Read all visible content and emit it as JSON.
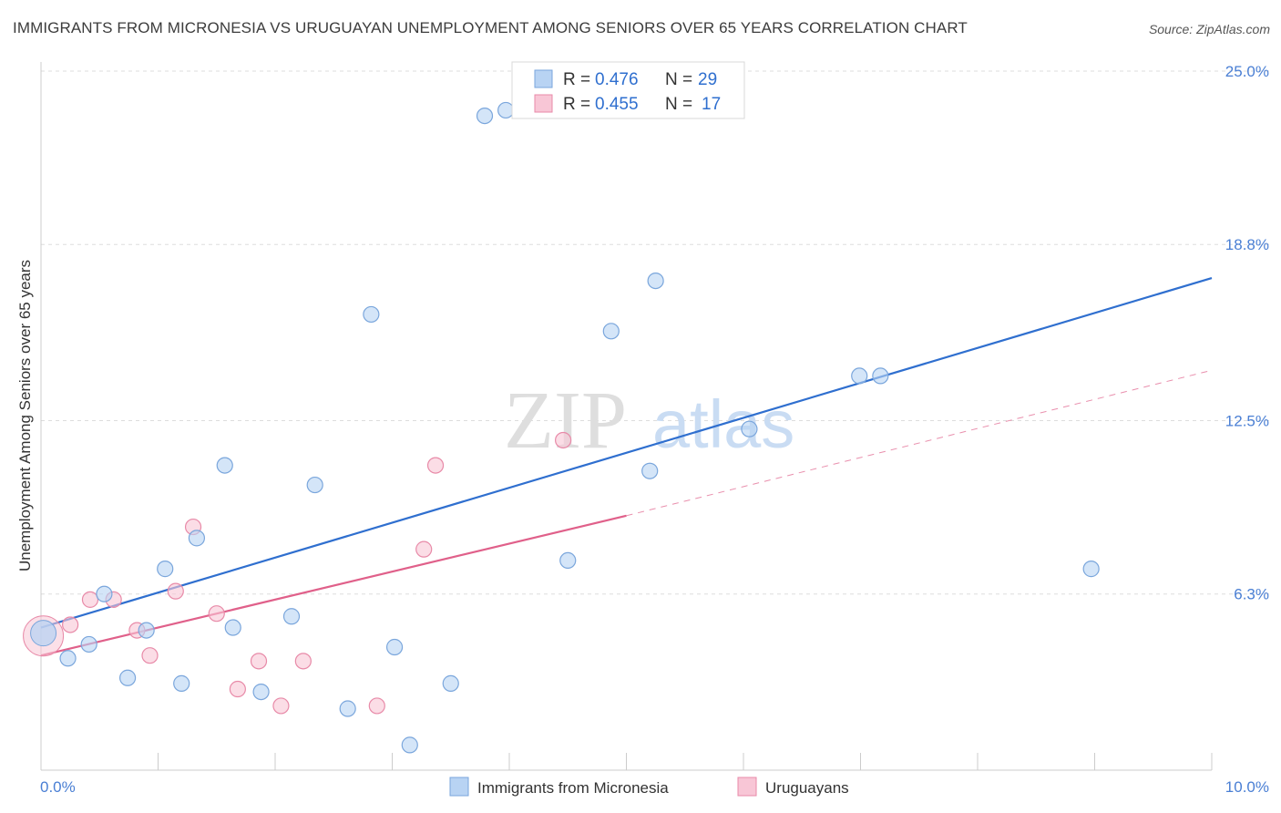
{
  "header": {
    "title": "IMMIGRANTS FROM MICRONESIA VS URUGUAYAN UNEMPLOYMENT AMONG SENIORS OVER 65 YEARS CORRELATION CHART",
    "source": "Source: ZipAtlas.com"
  },
  "watermark": {
    "zip": "ZIP",
    "atlas": "atlas"
  },
  "colors": {
    "blue_fill": "#b8d3f3",
    "blue_stroke": "#7aa6dc",
    "blue_line": "#2f6fcf",
    "pink_fill": "#f8c6d6",
    "pink_stroke": "#e88aa8",
    "pink_line": "#e0608a",
    "grid": "#dddddd",
    "axis_text": "#4a7fd4"
  },
  "legend": {
    "rows": [
      {
        "r_label": "R =",
        "r_value": "0.476",
        "n_label": "N =",
        "n_value": "29"
      },
      {
        "r_label": "R =",
        "r_value": "0.455",
        "n_label": "N =",
        "n_value": "17"
      }
    ]
  },
  "chart_data": {
    "type": "scatter",
    "title": "IMMIGRANTS FROM MICRONESIA VS URUGUAYAN UNEMPLOYMENT AMONG SENIORS OVER 65 YEARS CORRELATION CHART",
    "xlabel": "",
    "ylabel": "Unemployment Among Seniors over 65 years",
    "xlim": [
      0,
      10
    ],
    "ylim": [
      0,
      25
    ],
    "x_tick_labels": [
      "0.0%",
      "10.0%"
    ],
    "y_ticks": [
      6.3,
      12.5,
      18.8,
      25.0
    ],
    "y_tick_labels": [
      "6.3%",
      "12.5%",
      "18.8%",
      "25.0%"
    ],
    "grid": true,
    "series": [
      {
        "name": "Immigrants from Micronesia",
        "color": "blue",
        "R": 0.476,
        "N": 29,
        "points": [
          [
            0.02,
            4.9
          ],
          [
            0.23,
            4.0
          ],
          [
            0.41,
            4.5
          ],
          [
            0.54,
            6.3
          ],
          [
            0.74,
            3.3
          ],
          [
            0.9,
            5.0
          ],
          [
            1.06,
            7.2
          ],
          [
            1.2,
            3.1
          ],
          [
            1.33,
            8.3
          ],
          [
            1.57,
            10.9
          ],
          [
            1.64,
            5.1
          ],
          [
            1.88,
            2.8
          ],
          [
            2.14,
            5.5
          ],
          [
            2.34,
            10.2
          ],
          [
            2.62,
            2.2
          ],
          [
            2.82,
            16.3
          ],
          [
            3.02,
            4.4
          ],
          [
            3.15,
            0.9
          ],
          [
            3.5,
            3.1
          ],
          [
            3.79,
            23.4
          ],
          [
            3.97,
            23.6
          ],
          [
            4.5,
            7.5
          ],
          [
            4.87,
            15.7
          ],
          [
            5.2,
            10.7
          ],
          [
            5.25,
            17.5
          ],
          [
            6.05,
            12.2
          ],
          [
            6.99,
            14.1
          ],
          [
            7.17,
            14.1
          ],
          [
            8.97,
            7.2
          ]
        ],
        "trend": {
          "x0": 0.0,
          "y0": 5.1,
          "x1": 10.0,
          "y1": 17.6
        }
      },
      {
        "name": "Uruguayans",
        "color": "pink",
        "R": 0.455,
        "N": 17,
        "points": [
          [
            0.02,
            4.8
          ],
          [
            0.25,
            5.2
          ],
          [
            0.42,
            6.1
          ],
          [
            0.62,
            6.1
          ],
          [
            0.82,
            5.0
          ],
          [
            0.93,
            4.1
          ],
          [
            1.15,
            6.4
          ],
          [
            1.3,
            8.7
          ],
          [
            1.5,
            5.6
          ],
          [
            1.68,
            2.9
          ],
          [
            1.86,
            3.9
          ],
          [
            2.05,
            2.3
          ],
          [
            2.24,
            3.9
          ],
          [
            2.87,
            2.3
          ],
          [
            3.27,
            7.9
          ],
          [
            3.37,
            10.9
          ],
          [
            4.46,
            11.8
          ]
        ],
        "trend_solid": {
          "x0": 0.0,
          "y0": 4.1,
          "x1": 5.0,
          "y1": 9.1
        },
        "trend_dashed": {
          "x0": 5.0,
          "y0": 9.1,
          "x1": 10.0,
          "y1": 14.3
        }
      }
    ]
  }
}
